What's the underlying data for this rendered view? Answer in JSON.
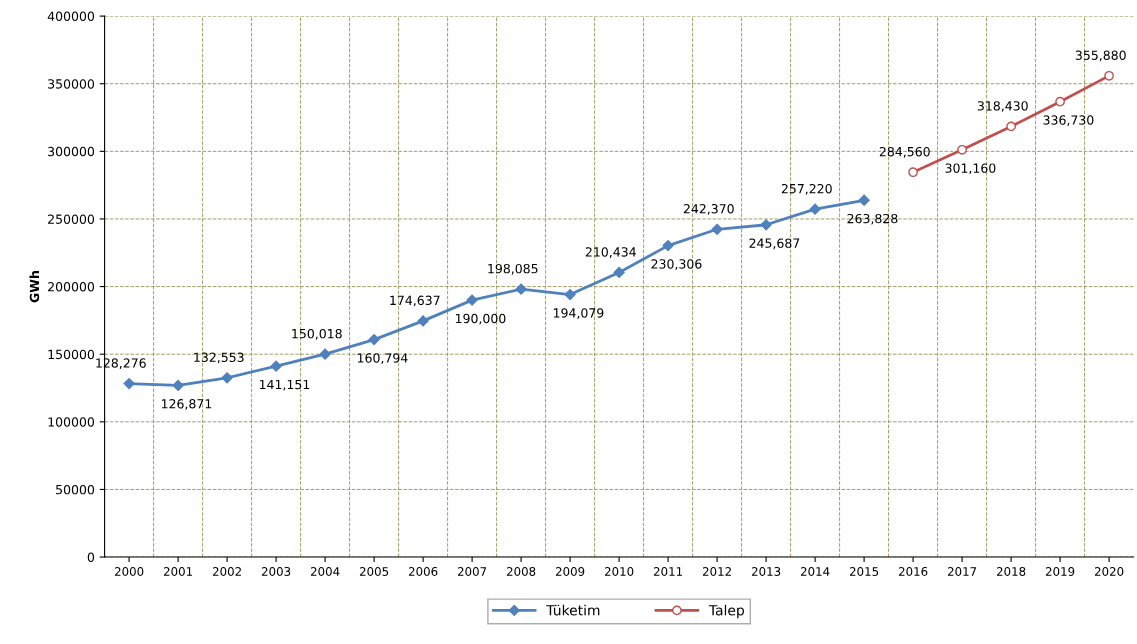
{
  "chart_data": {
    "type": "line",
    "ylabel": "GWh",
    "categories": [
      "2000",
      "2001",
      "2002",
      "2003",
      "2004",
      "2005",
      "2006",
      "2007",
      "2008",
      "2009",
      "2010",
      "2011",
      "2012",
      "2013",
      "2014",
      "2015",
      "2016",
      "2017",
      "2018",
      "2019",
      "2020"
    ],
    "series": [
      {
        "name": "Tüketim",
        "color": "#4f81bd",
        "marker": "diamond",
        "values": [
          128276,
          126871,
          132553,
          141151,
          150018,
          160794,
          174637,
          190000,
          198085,
          194079,
          210434,
          230306,
          242370,
          245687,
          257220,
          263828,
          null,
          null,
          null,
          null,
          null
        ],
        "value_labels": [
          "128,276",
          "126,871",
          "132,553",
          "141,151",
          "150,018",
          "160,794",
          "174,637",
          "190,000",
          "198,085",
          "194,079",
          "210,434",
          "230,306",
          "242,370",
          "245,687",
          "257,220",
          "263,828",
          null,
          null,
          null,
          null,
          null
        ]
      },
      {
        "name": "Talep",
        "color": "#c0504d",
        "marker": "circle",
        "values": [
          null,
          null,
          null,
          null,
          null,
          null,
          null,
          null,
          null,
          null,
          null,
          null,
          null,
          null,
          null,
          null,
          284560,
          301160,
          318430,
          336730,
          355880
        ],
        "value_labels": [
          null,
          null,
          null,
          null,
          null,
          null,
          null,
          null,
          null,
          null,
          null,
          null,
          null,
          null,
          null,
          null,
          "284,560",
          "301,160",
          "318,430",
          "336,730",
          "355,880"
        ]
      }
    ],
    "ylim": [
      0,
      400000
    ],
    "yticks": [
      0,
      50000,
      100000,
      150000,
      200000,
      250000,
      300000,
      350000,
      400000
    ],
    "grid": true,
    "legend": "bottom",
    "line_style": "solid"
  }
}
